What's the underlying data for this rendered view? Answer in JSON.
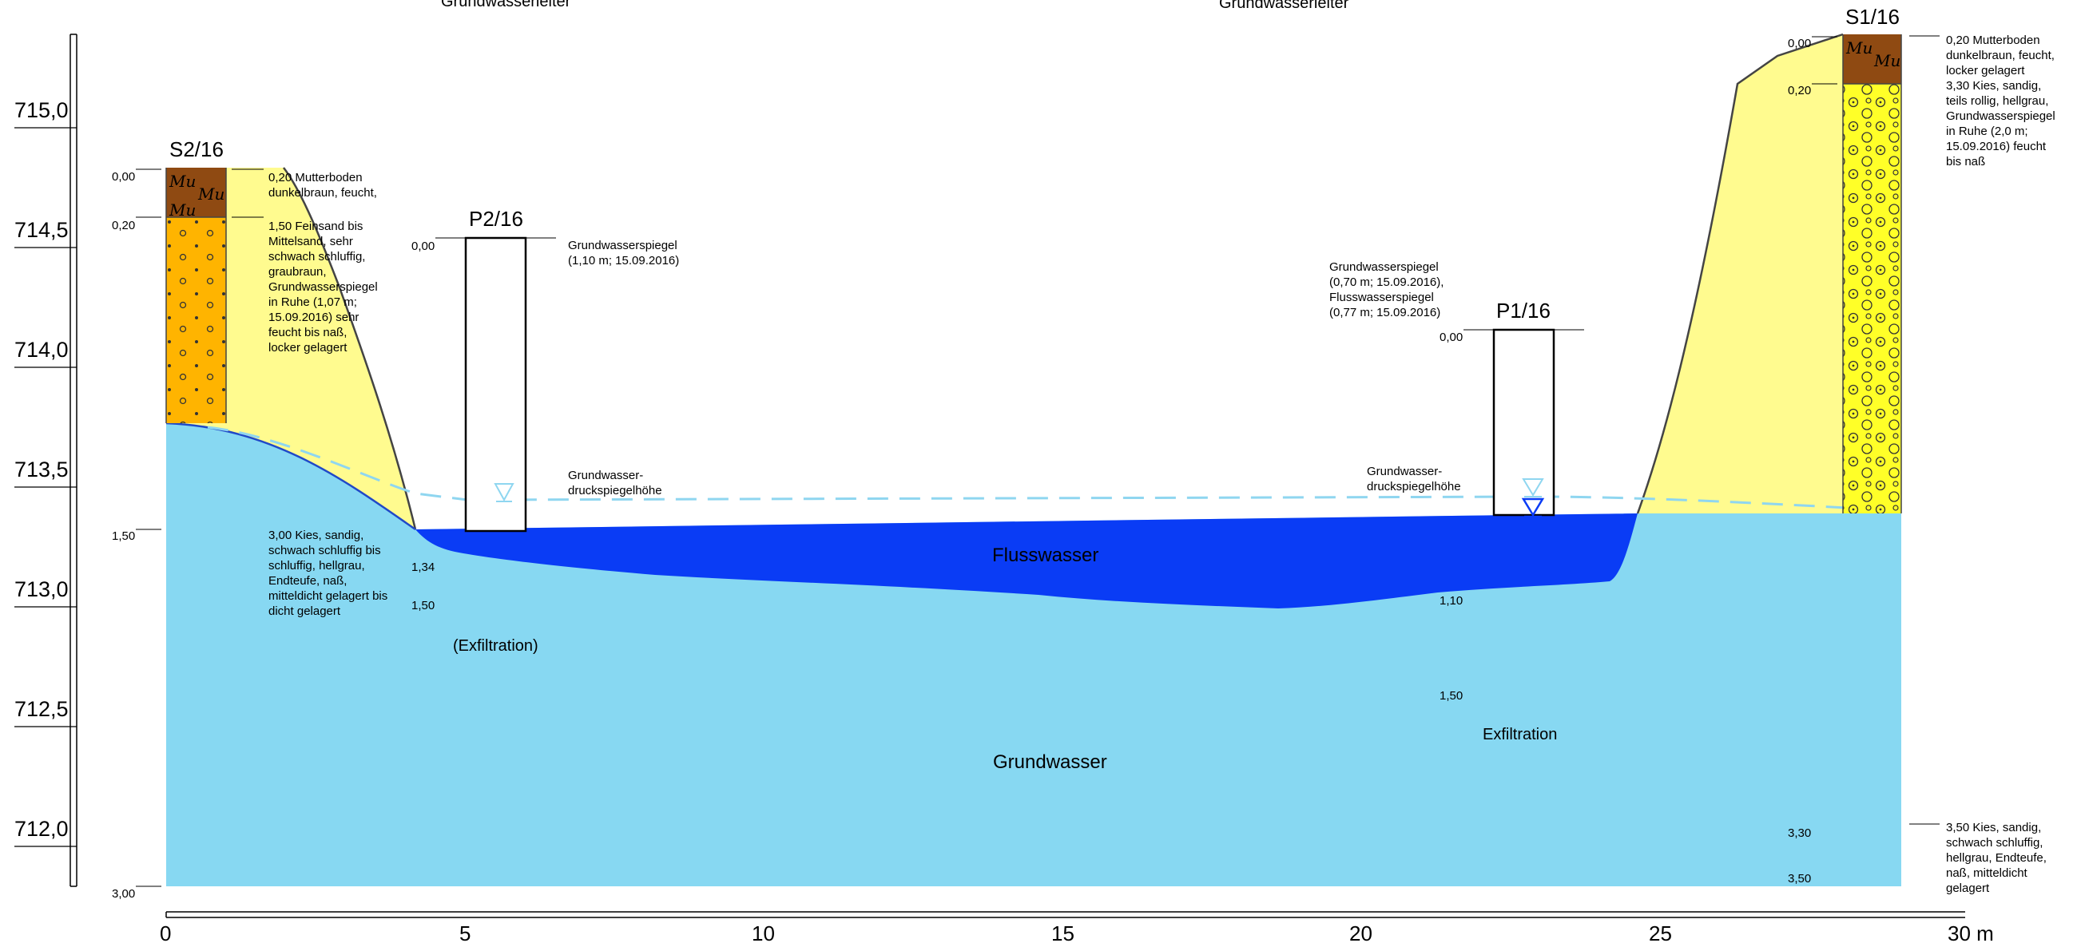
{
  "header": {
    "left_cut": "Grundwasserleiter",
    "right_cut": "Grundwasserleiter"
  },
  "elevation_axis": {
    "labels": [
      "715,0",
      "714,5",
      "714,0",
      "713,5",
      "713,0",
      "712,5",
      "712,0"
    ]
  },
  "distance_axis": {
    "labels": [
      "0",
      "5",
      "10",
      "15",
      "20",
      "25",
      "30 m"
    ]
  },
  "boreholes": {
    "s2": {
      "title": "S2/16",
      "depths": [
        "0,00",
        "0,20",
        "1,50",
        "3,00"
      ],
      "descriptions": [
        [
          "0,20 Mutterboden",
          "dunkelbraun, feucht,"
        ],
        [
          "1,50 Feinsand bis",
          "Mittelsand, sehr",
          "schwach schluffig,",
          "graubraun,",
          "Grundwasserspiegel",
          "in Ruhe (1,07 m;",
          "15.09.2016) sehr",
          "feucht bis naß,",
          "locker gelagert"
        ],
        [
          "3,00 Kies, sandig,",
          "schwach schluffig bis",
          "schluffig, hellgrau,",
          "Endteufe, naß,",
          "mitteldicht gelagert bis",
          "dicht gelagert"
        ]
      ]
    },
    "s1": {
      "title": "S1/16",
      "depths": [
        "0,00",
        "0,20",
        "3,30",
        "3,50"
      ],
      "descriptions": [
        [
          "0,20 Mutterboden",
          "dunkelbraun, feucht,",
          "locker gelagert",
          "3,30 Kies, sandig,",
          "teils rollig, hellgrau,",
          "Grundwasserspiegel",
          "in Ruhe (2,0 m;",
          "15.09.2016) feucht",
          "bis naß"
        ],
        [
          "3,50 Kies, sandig,",
          "schwach schluffig,",
          "hellgrau, Endteufe,",
          "naß, mitteldicht",
          "gelagert"
        ]
      ]
    },
    "p2": {
      "title": "P2/16",
      "depths": [
        "0,00",
        "1,34",
        "1,50"
      ],
      "note": [
        "Grundwasserspiegel",
        "(1,10 m; 15.09.2016)"
      ]
    },
    "p1": {
      "title": "P1/16",
      "depths": [
        "0,00",
        "1,10",
        "1,50"
      ],
      "note": [
        "Grundwasserspiegel",
        "(0,70 m; 15.09.2016),",
        "Flusswasserspiegel",
        "(0,77 m; 15.09.2016)"
      ]
    }
  },
  "labels": {
    "piezo_left": [
      "Grundwasser-",
      "druckspiegelhöhe"
    ],
    "piezo_right": [
      "Grundwasser-",
      "druckspiegelhöhe"
    ],
    "flusswasser": "Flusswasser",
    "grundwasser": "Grundwasser",
    "exfiltration_left": "(Exfiltration)",
    "exfiltration_right": "Exfiltration"
  },
  "symbols": {
    "mutterboden": "Mu"
  },
  "colors": {
    "groundwater": "#87d8f2",
    "river": "#0a3cf5",
    "bank": "#fffb8f",
    "sand_column": "#ffb400",
    "gravel_column": "#ffff28",
    "topsoil": "#8f4a12",
    "piezometric_line": "#8fd6f0"
  }
}
